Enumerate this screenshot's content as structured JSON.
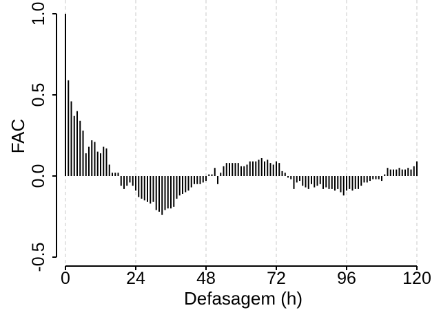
{
  "chart_data": {
    "type": "bar",
    "title": "",
    "xlabel": "Defasagem (h)",
    "ylabel": "FAC",
    "xlim": [
      0,
      120
    ],
    "ylim": [
      -0.5,
      1.0
    ],
    "xticks": [
      0,
      24,
      48,
      72,
      96,
      120
    ],
    "xtick_labels": [
      "0",
      "24",
      "48",
      "72",
      "96",
      "120"
    ],
    "yticks": [
      -0.5,
      0.0,
      0.5,
      1.0
    ],
    "ytick_labels": [
      "-0.5",
      "0.0",
      "0.5",
      "1.0"
    ],
    "grid": "vertical-dashed",
    "bar_color": "#000000",
    "grid_color": "#c8c8c8",
    "x": [
      0,
      1,
      2,
      3,
      4,
      5,
      6,
      7,
      8,
      9,
      10,
      11,
      12,
      13,
      14,
      15,
      16,
      17,
      18,
      19,
      20,
      21,
      22,
      23,
      24,
      25,
      26,
      27,
      28,
      29,
      30,
      31,
      32,
      33,
      34,
      35,
      36,
      37,
      38,
      39,
      40,
      41,
      42,
      43,
      44,
      45,
      46,
      47,
      48,
      49,
      50,
      51,
      52,
      53,
      54,
      55,
      56,
      57,
      58,
      59,
      60,
      61,
      62,
      63,
      64,
      65,
      66,
      67,
      68,
      69,
      70,
      71,
      72,
      73,
      74,
      75,
      76,
      77,
      78,
      79,
      80,
      81,
      82,
      83,
      84,
      85,
      86,
      87,
      88,
      89,
      90,
      91,
      92,
      93,
      94,
      95,
      96,
      97,
      98,
      99,
      100,
      101,
      102,
      103,
      104,
      105,
      106,
      107,
      108,
      109,
      110,
      111,
      112,
      113,
      114,
      115,
      116,
      117,
      118,
      119,
      120
    ],
    "values": [
      1.0,
      0.59,
      0.46,
      0.37,
      0.4,
      0.34,
      0.28,
      0.14,
      0.18,
      0.22,
      0.21,
      0.15,
      0.14,
      0.18,
      0.17,
      0.07,
      0.02,
      0.02,
      0.02,
      -0.06,
      -0.08,
      -0.06,
      -0.04,
      -0.06,
      -0.09,
      -0.13,
      -0.14,
      -0.15,
      -0.16,
      -0.17,
      -0.16,
      -0.21,
      -0.22,
      -0.24,
      -0.21,
      -0.2,
      -0.2,
      -0.19,
      -0.14,
      -0.12,
      -0.11,
      -0.1,
      -0.09,
      -0.07,
      -0.05,
      -0.05,
      -0.05,
      -0.04,
      -0.03,
      0.01,
      0.01,
      0.05,
      -0.05,
      0.02,
      0.06,
      0.08,
      0.08,
      0.08,
      0.08,
      0.08,
      0.06,
      0.06,
      0.07,
      0.09,
      0.09,
      0.09,
      0.1,
      0.11,
      0.09,
      0.1,
      0.08,
      0.07,
      0.09,
      0.08,
      0.03,
      0.02,
      -0.01,
      -0.02,
      -0.08,
      -0.04,
      -0.03,
      -0.06,
      -0.07,
      -0.08,
      -0.05,
      -0.07,
      -0.06,
      -0.05,
      -0.08,
      -0.07,
      -0.08,
      -0.08,
      -0.09,
      -0.08,
      -0.1,
      -0.12,
      -0.09,
      -0.08,
      -0.09,
      -0.08,
      -0.08,
      -0.06,
      -0.04,
      -0.04,
      -0.03,
      -0.02,
      -0.02,
      -0.02,
      -0.03,
      0.01,
      0.05,
      0.04,
      0.04,
      0.04,
      0.05,
      0.04,
      0.04,
      0.05,
      0.04,
      0.06,
      0.09
    ]
  }
}
